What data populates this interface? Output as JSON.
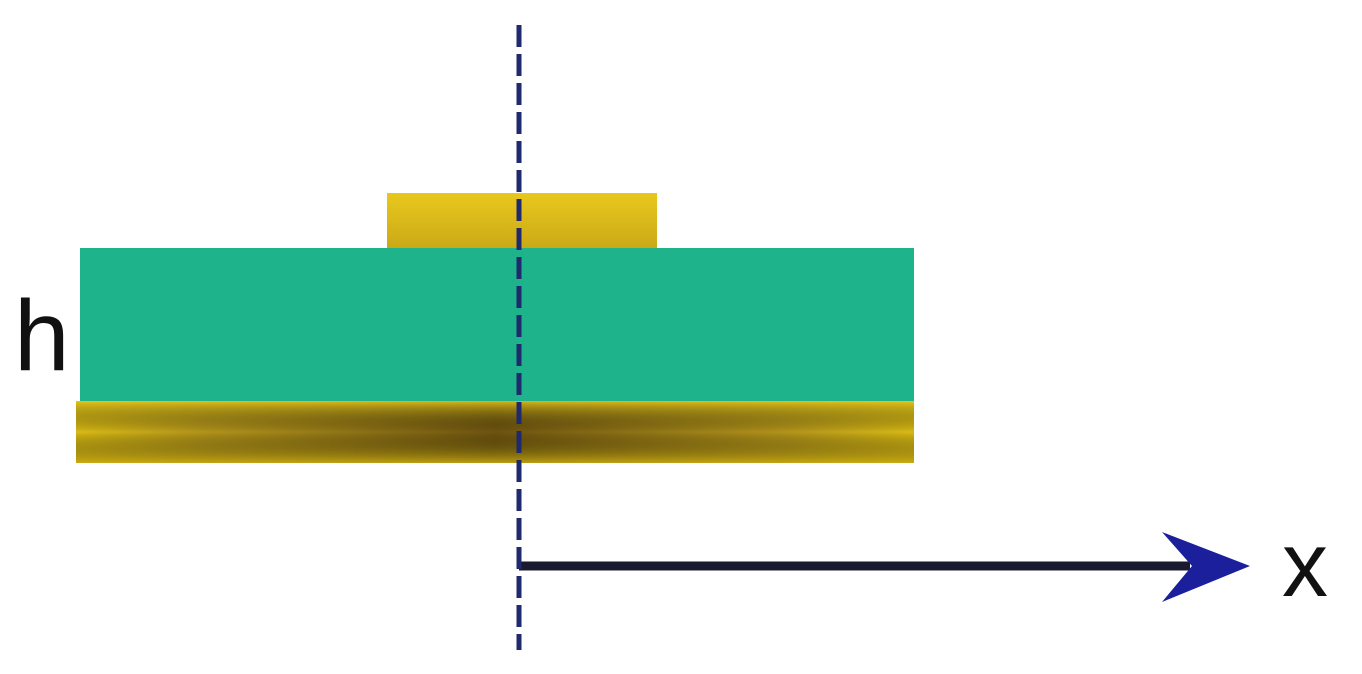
{
  "labels": {
    "height": "h",
    "x_axis": "x"
  },
  "colors": {
    "substrate": "#1fb38c",
    "conductor_top": "#e0c21a",
    "ground_plane": "#d9bb14",
    "ground_plane_dark": "#6e5410",
    "axis": "#1a1a2e",
    "centerline": "#1f2a6e",
    "arrowhead": "#1c1f9c"
  }
}
